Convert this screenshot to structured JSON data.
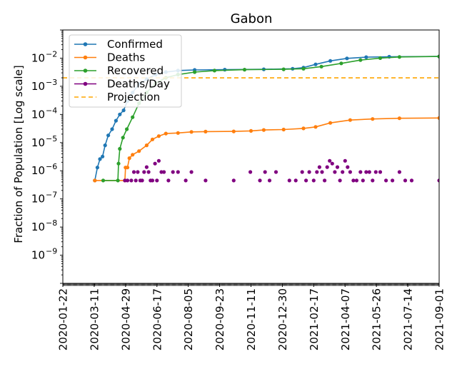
{
  "chart_data": {
    "type": "line",
    "title": "Gabon",
    "xlabel": "",
    "ylabel": "Fraction of Population [Log scale]",
    "yscale": "log",
    "ylim": [
      1e-10,
      0.1
    ],
    "x_range": [
      "2020-01-22",
      "2021-09-01"
    ],
    "x_ticks": [
      "2020-01-22",
      "2020-03-11",
      "2020-04-29",
      "2020-06-17",
      "2020-08-05",
      "2020-09-23",
      "2020-11-11",
      "2020-12-30",
      "2021-02-17",
      "2021-04-07",
      "2021-05-26",
      "2021-07-14",
      "2021-09-01"
    ],
    "y_ticks": [
      {
        "value": 1e-09,
        "base": "10",
        "exp": "−9"
      },
      {
        "value": 1e-08,
        "base": "10",
        "exp": "−8"
      },
      {
        "value": 1e-07,
        "base": "10",
        "exp": "−7"
      },
      {
        "value": 1e-06,
        "base": "10",
        "exp": "−6"
      },
      {
        "value": 1e-05,
        "base": "10",
        "exp": "−5"
      },
      {
        "value": 0.0001,
        "base": "10",
        "exp": "−4"
      },
      {
        "value": 0.001,
        "base": "10",
        "exp": "−3"
      },
      {
        "value": 0.01,
        "base": "10",
        "exp": "−2"
      }
    ],
    "legend_position": "upper-left",
    "series": [
      {
        "name": "Confirmed",
        "color": "#1f77b4",
        "style": "line-markers",
        "points": [
          [
            "2020-03-12",
            4.5e-07
          ],
          [
            "2020-03-16",
            1.3e-06
          ],
          [
            "2020-03-20",
            2.6e-06
          ],
          [
            "2020-03-24",
            3.2e-06
          ],
          [
            "2020-03-28",
            8e-06
          ],
          [
            "2020-04-02",
            1.8e-05
          ],
          [
            "2020-04-08",
            3e-05
          ],
          [
            "2020-04-14",
            6e-05
          ],
          [
            "2020-04-20",
            0.0001
          ],
          [
            "2020-04-26",
            0.00014
          ],
          [
            "2020-05-02",
            0.0003
          ],
          [
            "2020-05-10",
            0.0006
          ],
          [
            "2020-05-20",
            0.0012
          ],
          [
            "2020-06-01",
            0.0018
          ],
          [
            "2020-06-15",
            0.0026
          ],
          [
            "2020-07-01",
            0.0032
          ],
          [
            "2020-07-20",
            0.0036
          ],
          [
            "2020-08-15",
            0.0038
          ],
          [
            "2020-10-01",
            0.0039
          ],
          [
            "2020-12-01",
            0.004
          ],
          [
            "2021-01-15",
            0.0042
          ],
          [
            "2021-02-01",
            0.0046
          ],
          [
            "2021-02-20",
            0.006
          ],
          [
            "2021-03-15",
            0.008
          ],
          [
            "2021-04-10",
            0.0098
          ],
          [
            "2021-05-10",
            0.0108
          ],
          [
            "2021-06-15",
            0.0112
          ],
          [
            "2021-09-01",
            0.0115
          ]
        ]
      },
      {
        "name": "Deaths",
        "color": "#ff7f0e",
        "style": "line-markers",
        "points": [
          [
            "2020-03-12",
            4.5e-07
          ],
          [
            "2020-04-28",
            4.5e-07
          ],
          [
            "2020-04-29",
            1.3e-06
          ],
          [
            "2020-05-02",
            1.3e-06
          ],
          [
            "2020-05-05",
            2.8e-06
          ],
          [
            "2020-05-10",
            3.7e-06
          ],
          [
            "2020-05-20",
            5e-06
          ],
          [
            "2020-06-01",
            8e-06
          ],
          [
            "2020-06-10",
            1.3e-05
          ],
          [
            "2020-06-20",
            1.7e-05
          ],
          [
            "2020-07-01",
            2.1e-05
          ],
          [
            "2020-07-20",
            2.2e-05
          ],
          [
            "2020-08-10",
            2.4e-05
          ],
          [
            "2020-09-01",
            2.45e-05
          ],
          [
            "2020-10-15",
            2.5e-05
          ],
          [
            "2020-11-11",
            2.6e-05
          ],
          [
            "2020-12-01",
            2.8e-05
          ],
          [
            "2021-01-01",
            2.9e-05
          ],
          [
            "2021-02-01",
            3.2e-05
          ],
          [
            "2021-02-20",
            3.6e-05
          ],
          [
            "2021-03-15",
            5e-05
          ],
          [
            "2021-04-15",
            6.3e-05
          ],
          [
            "2021-05-20",
            6.9e-05
          ],
          [
            "2021-07-01",
            7.3e-05
          ],
          [
            "2021-09-01",
            7.5e-05
          ]
        ]
      },
      {
        "name": "Recovered",
        "color": "#2ca02c",
        "style": "line-markers",
        "points": [
          [
            "2020-03-25",
            4.5e-07
          ],
          [
            "2020-04-17",
            4.5e-07
          ],
          [
            "2020-04-18",
            1.8e-06
          ],
          [
            "2020-04-20",
            6e-06
          ],
          [
            "2020-04-25",
            1.5e-05
          ],
          [
            "2020-05-01",
            3e-05
          ],
          [
            "2020-05-10",
            8e-05
          ],
          [
            "2020-05-20",
            0.00025
          ],
          [
            "2020-06-01",
            0.0006
          ],
          [
            "2020-06-15",
            0.0013
          ],
          [
            "2020-07-01",
            0.002
          ],
          [
            "2020-07-20",
            0.0026
          ],
          [
            "2020-08-15",
            0.0032
          ],
          [
            "2020-09-15",
            0.0036
          ],
          [
            "2020-11-01",
            0.0039
          ],
          [
            "2021-01-01",
            0.004
          ],
          [
            "2021-02-01",
            0.0042
          ],
          [
            "2021-03-01",
            0.005
          ],
          [
            "2021-04-01",
            0.0065
          ],
          [
            "2021-05-01",
            0.0085
          ],
          [
            "2021-06-01",
            0.01
          ],
          [
            "2021-07-01",
            0.011
          ],
          [
            "2021-09-01",
            0.0115
          ]
        ]
      },
      {
        "name": "Deaths/Day",
        "color": "#800080",
        "style": "markers",
        "points": [
          [
            "2020-04-28",
            4.5e-07
          ],
          [
            "2020-05-02",
            4.5e-07
          ],
          [
            "2020-05-08",
            4.5e-07
          ],
          [
            "2020-05-12",
            9e-07
          ],
          [
            "2020-05-15",
            4.5e-07
          ],
          [
            "2020-05-18",
            9e-07
          ],
          [
            "2020-05-22",
            4.5e-07
          ],
          [
            "2020-05-25",
            4.5e-07
          ],
          [
            "2020-05-28",
            9e-07
          ],
          [
            "2020-06-01",
            1.35e-06
          ],
          [
            "2020-06-04",
            9e-07
          ],
          [
            "2020-06-07",
            4.5e-07
          ],
          [
            "2020-06-10",
            4.5e-07
          ],
          [
            "2020-06-14",
            1.8e-06
          ],
          [
            "2020-06-17",
            4.5e-07
          ],
          [
            "2020-06-20",
            2.25e-06
          ],
          [
            "2020-06-24",
            9e-07
          ],
          [
            "2020-06-28",
            9e-07
          ],
          [
            "2020-07-05",
            4.5e-07
          ],
          [
            "2020-07-12",
            9e-07
          ],
          [
            "2020-07-20",
            9e-07
          ],
          [
            "2020-08-01",
            4.5e-07
          ],
          [
            "2020-08-10",
            9e-07
          ],
          [
            "2020-09-01",
            4.5e-07
          ],
          [
            "2020-10-15",
            4.5e-07
          ],
          [
            "2020-11-10",
            9e-07
          ],
          [
            "2020-11-25",
            4.5e-07
          ],
          [
            "2020-12-03",
            9e-07
          ],
          [
            "2020-12-10",
            4.5e-07
          ],
          [
            "2020-12-20",
            9e-07
          ],
          [
            "2021-01-10",
            4.5e-07
          ],
          [
            "2021-01-20",
            4.5e-07
          ],
          [
            "2021-01-30",
            9e-07
          ],
          [
            "2021-02-05",
            4.5e-07
          ],
          [
            "2021-02-10",
            9e-07
          ],
          [
            "2021-02-17",
            4.5e-07
          ],
          [
            "2021-02-22",
            9e-07
          ],
          [
            "2021-02-26",
            1.35e-06
          ],
          [
            "2021-03-02",
            9e-07
          ],
          [
            "2021-03-06",
            4.5e-07
          ],
          [
            "2021-03-10",
            1.35e-06
          ],
          [
            "2021-03-14",
            2.25e-06
          ],
          [
            "2021-03-18",
            1.8e-06
          ],
          [
            "2021-03-22",
            9e-07
          ],
          [
            "2021-03-26",
            1.35e-06
          ],
          [
            "2021-03-30",
            4.5e-07
          ],
          [
            "2021-04-03",
            9e-07
          ],
          [
            "2021-04-07",
            2.25e-06
          ],
          [
            "2021-04-11",
            1.35e-06
          ],
          [
            "2021-04-15",
            9e-07
          ],
          [
            "2021-04-20",
            4.5e-07
          ],
          [
            "2021-04-25",
            4.5e-07
          ],
          [
            "2021-05-01",
            9e-07
          ],
          [
            "2021-05-05",
            4.5e-07
          ],
          [
            "2021-05-10",
            9e-07
          ],
          [
            "2021-05-15",
            9e-07
          ],
          [
            "2021-05-20",
            4.5e-07
          ],
          [
            "2021-05-25",
            9e-07
          ],
          [
            "2021-06-01",
            9e-07
          ],
          [
            "2021-06-10",
            4.5e-07
          ],
          [
            "2021-06-20",
            4.5e-07
          ],
          [
            "2021-07-01",
            9e-07
          ],
          [
            "2021-07-10",
            4.5e-07
          ],
          [
            "2021-07-20",
            4.5e-07
          ],
          [
            "2021-09-01",
            4.5e-07
          ]
        ]
      },
      {
        "name": "Projection",
        "color": "#ffa500",
        "style": "dashed",
        "value": 0.002
      }
    ]
  }
}
